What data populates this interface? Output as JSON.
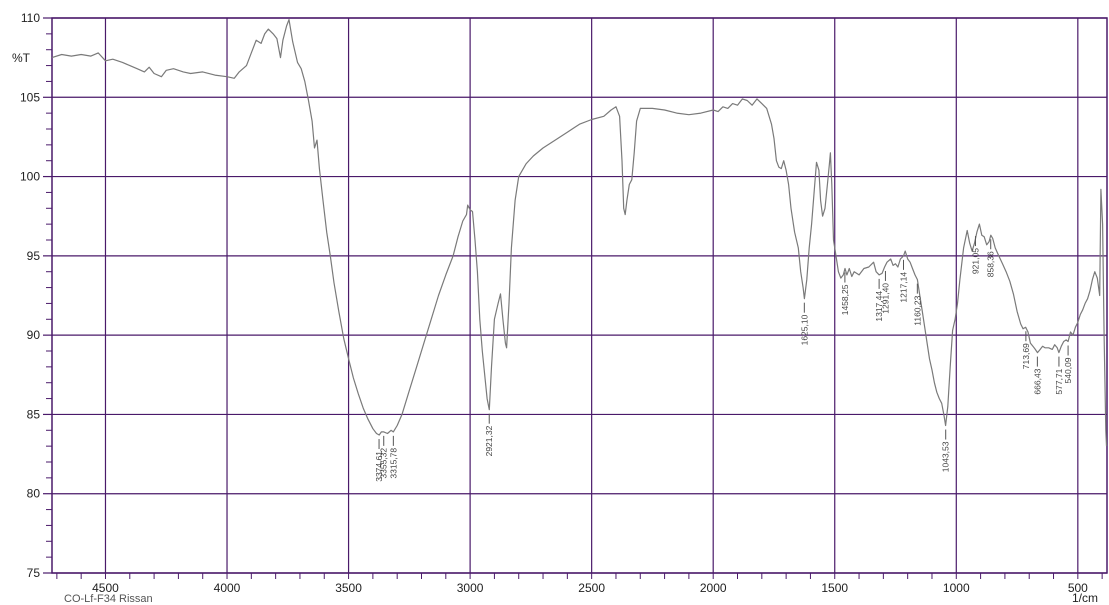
{
  "chart_data": {
    "type": "line",
    "title": "",
    "sample_label": "CO-Lf-F34 Rissan",
    "ylabel": "%T",
    "xlabel": "1/cm",
    "xlim": [
      4720,
      380
    ],
    "ylim": [
      75,
      110
    ],
    "x_ticks": [
      4500,
      4000,
      3500,
      3000,
      2500,
      2000,
      1500,
      1000,
      500
    ],
    "y_ticks": [
      75,
      80,
      85,
      90,
      95,
      100,
      105,
      110
    ],
    "grid": true,
    "colors": {
      "grid": "#4a1a6a",
      "axis": "#4a1a6a",
      "line": "#7a7a7a",
      "peak_mark": "#555555"
    },
    "series": [
      {
        "points": [
          [
            4720,
            107.5
          ],
          [
            4680,
            107.7
          ],
          [
            4640,
            107.6
          ],
          [
            4600,
            107.7
          ],
          [
            4560,
            107.6
          ],
          [
            4530,
            107.8
          ],
          [
            4500,
            107.3
          ],
          [
            4470,
            107.4
          ],
          [
            4430,
            107.2
          ],
          [
            4400,
            107.0
          ],
          [
            4370,
            106.8
          ],
          [
            4340,
            106.6
          ],
          [
            4320,
            106.9
          ],
          [
            4300,
            106.5
          ],
          [
            4270,
            106.3
          ],
          [
            4250,
            106.7
          ],
          [
            4220,
            106.8
          ],
          [
            4180,
            106.6
          ],
          [
            4150,
            106.5
          ],
          [
            4100,
            106.6
          ],
          [
            4050,
            106.4
          ],
          [
            4000,
            106.3
          ],
          [
            3970,
            106.2
          ],
          [
            3950,
            106.6
          ],
          [
            3920,
            107.0
          ],
          [
            3900,
            107.8
          ],
          [
            3880,
            108.6
          ],
          [
            3860,
            108.4
          ],
          [
            3845,
            109.0
          ],
          [
            3830,
            109.3
          ],
          [
            3810,
            109.0
          ],
          [
            3795,
            108.7
          ],
          [
            3780,
            107.5
          ],
          [
            3770,
            108.6
          ],
          [
            3755,
            109.5
          ],
          [
            3745,
            109.9
          ],
          [
            3730,
            108.5
          ],
          [
            3710,
            107.2
          ],
          [
            3695,
            106.8
          ],
          [
            3680,
            106.0
          ],
          [
            3665,
            104.8
          ],
          [
            3650,
            103.5
          ],
          [
            3640,
            101.8
          ],
          [
            3630,
            102.3
          ],
          [
            3620,
            100.5
          ],
          [
            3605,
            98.5
          ],
          [
            3590,
            96.5
          ],
          [
            3575,
            95.0
          ],
          [
            3560,
            93.3
          ],
          [
            3540,
            91.5
          ],
          [
            3520,
            89.8
          ],
          [
            3500,
            88.5
          ],
          [
            3480,
            87.3
          ],
          [
            3460,
            86.3
          ],
          [
            3440,
            85.4
          ],
          [
            3420,
            84.7
          ],
          [
            3400,
            84.1
          ],
          [
            3385,
            83.8
          ],
          [
            3374,
            83.7
          ],
          [
            3365,
            83.9
          ],
          [
            3355,
            83.9
          ],
          [
            3340,
            83.8
          ],
          [
            3325,
            84.0
          ],
          [
            3316,
            83.9
          ],
          [
            3300,
            84.3
          ],
          [
            3280,
            85.0
          ],
          [
            3250,
            86.5
          ],
          [
            3220,
            88.0
          ],
          [
            3190,
            89.5
          ],
          [
            3160,
            91.0
          ],
          [
            3130,
            92.5
          ],
          [
            3100,
            93.8
          ],
          [
            3070,
            95.0
          ],
          [
            3050,
            96.2
          ],
          [
            3030,
            97.2
          ],
          [
            3015,
            97.6
          ],
          [
            3010,
            98.2
          ],
          [
            3000,
            97.9
          ],
          [
            2990,
            97.8
          ],
          [
            2980,
            96.0
          ],
          [
            2970,
            94.0
          ],
          [
            2960,
            91.0
          ],
          [
            2950,
            89.0
          ],
          [
            2940,
            87.5
          ],
          [
            2930,
            86.0
          ],
          [
            2921,
            85.3
          ],
          [
            2912,
            88.0
          ],
          [
            2900,
            91.0
          ],
          [
            2885,
            92.0
          ],
          [
            2875,
            92.6
          ],
          [
            2865,
            91.0
          ],
          [
            2855,
            89.5
          ],
          [
            2850,
            89.2
          ],
          [
            2840,
            92.0
          ],
          [
            2830,
            95.5
          ],
          [
            2815,
            98.5
          ],
          [
            2800,
            100.0
          ],
          [
            2770,
            100.8
          ],
          [
            2740,
            101.3
          ],
          [
            2700,
            101.8
          ],
          [
            2650,
            102.3
          ],
          [
            2600,
            102.8
          ],
          [
            2550,
            103.3
          ],
          [
            2500,
            103.6
          ],
          [
            2450,
            103.8
          ],
          [
            2420,
            104.2
          ],
          [
            2400,
            104.4
          ],
          [
            2385,
            103.8
          ],
          [
            2375,
            101.0
          ],
          [
            2368,
            98.0
          ],
          [
            2362,
            97.6
          ],
          [
            2355,
            98.5
          ],
          [
            2345,
            99.5
          ],
          [
            2335,
            99.8
          ],
          [
            2325,
            101.5
          ],
          [
            2315,
            103.5
          ],
          [
            2300,
            104.3
          ],
          [
            2250,
            104.3
          ],
          [
            2200,
            104.2
          ],
          [
            2150,
            104.0
          ],
          [
            2100,
            103.9
          ],
          [
            2050,
            104.0
          ],
          [
            2000,
            104.2
          ],
          [
            1980,
            104.1
          ],
          [
            1960,
            104.4
          ],
          [
            1940,
            104.3
          ],
          [
            1920,
            104.6
          ],
          [
            1900,
            104.5
          ],
          [
            1880,
            104.9
          ],
          [
            1860,
            104.8
          ],
          [
            1840,
            104.5
          ],
          [
            1820,
            104.9
          ],
          [
            1800,
            104.6
          ],
          [
            1780,
            104.3
          ],
          [
            1760,
            103.3
          ],
          [
            1750,
            102.4
          ],
          [
            1740,
            101.0
          ],
          [
            1730,
            100.6
          ],
          [
            1720,
            100.5
          ],
          [
            1710,
            101.0
          ],
          [
            1700,
            100.4
          ],
          [
            1690,
            99.5
          ],
          [
            1680,
            98.0
          ],
          [
            1665,
            96.5
          ],
          [
            1650,
            95.5
          ],
          [
            1640,
            94.0
          ],
          [
            1630,
            93.0
          ],
          [
            1625,
            92.3
          ],
          [
            1615,
            93.5
          ],
          [
            1605,
            95.5
          ],
          [
            1595,
            97.0
          ],
          [
            1585,
            99.0
          ],
          [
            1575,
            100.9
          ],
          [
            1565,
            100.4
          ],
          [
            1558,
            98.5
          ],
          [
            1550,
            97.5
          ],
          [
            1540,
            98.0
          ],
          [
            1530,
            99.5
          ],
          [
            1522,
            100.8
          ],
          [
            1518,
            101.5
          ],
          [
            1512,
            99.5
          ],
          [
            1505,
            96.0
          ],
          [
            1495,
            95.0
          ],
          [
            1485,
            94.0
          ],
          [
            1475,
            93.6
          ],
          [
            1465,
            93.8
          ],
          [
            1458,
            94.2
          ],
          [
            1450,
            93.8
          ],
          [
            1440,
            94.2
          ],
          [
            1430,
            93.7
          ],
          [
            1420,
            94.0
          ],
          [
            1400,
            93.8
          ],
          [
            1380,
            94.2
          ],
          [
            1360,
            94.3
          ],
          [
            1340,
            94.6
          ],
          [
            1330,
            94.0
          ],
          [
            1317,
            93.8
          ],
          [
            1305,
            93.9
          ],
          [
            1295,
            94.3
          ],
          [
            1285,
            94.6
          ],
          [
            1270,
            94.8
          ],
          [
            1260,
            94.4
          ],
          [
            1250,
            94.5
          ],
          [
            1240,
            94.3
          ],
          [
            1230,
            94.8
          ],
          [
            1217,
            95.0
          ],
          [
            1210,
            95.3
          ],
          [
            1200,
            94.8
          ],
          [
            1190,
            94.6
          ],
          [
            1180,
            94.2
          ],
          [
            1170,
            93.8
          ],
          [
            1160,
            93.5
          ],
          [
            1150,
            92.5
          ],
          [
            1140,
            91.5
          ],
          [
            1130,
            90.5
          ],
          [
            1120,
            89.5
          ],
          [
            1110,
            88.5
          ],
          [
            1100,
            87.8
          ],
          [
            1090,
            87.0
          ],
          [
            1080,
            86.4
          ],
          [
            1070,
            86.0
          ],
          [
            1060,
            85.7
          ],
          [
            1050,
            84.9
          ],
          [
            1044,
            84.3
          ],
          [
            1035,
            85.5
          ],
          [
            1025,
            88.0
          ],
          [
            1015,
            90.3
          ],
          [
            1005,
            91.0
          ],
          [
            995,
            92.0
          ],
          [
            985,
            93.5
          ],
          [
            970,
            95.5
          ],
          [
            955,
            96.6
          ],
          [
            945,
            95.8
          ],
          [
            935,
            95.3
          ],
          [
            925,
            95.8
          ],
          [
            915,
            96.5
          ],
          [
            905,
            97.0
          ],
          [
            895,
            96.3
          ],
          [
            885,
            96.2
          ],
          [
            875,
            95.7
          ],
          [
            865,
            95.9
          ],
          [
            858,
            96.3
          ],
          [
            850,
            96.1
          ],
          [
            840,
            95.5
          ],
          [
            825,
            95.0
          ],
          [
            810,
            94.5
          ],
          [
            795,
            94.0
          ],
          [
            780,
            93.4
          ],
          [
            765,
            92.6
          ],
          [
            750,
            91.5
          ],
          [
            735,
            90.7
          ],
          [
            725,
            90.4
          ],
          [
            715,
            90.5
          ],
          [
            705,
            90.2
          ],
          [
            695,
            89.5
          ],
          [
            685,
            89.3
          ],
          [
            675,
            89.1
          ],
          [
            666,
            88.9
          ],
          [
            655,
            89.1
          ],
          [
            645,
            89.3
          ],
          [
            635,
            89.2
          ],
          [
            620,
            89.2
          ],
          [
            605,
            89.1
          ],
          [
            595,
            89.4
          ],
          [
            585,
            89.2
          ],
          [
            578,
            88.9
          ],
          [
            568,
            89.3
          ],
          [
            558,
            89.6
          ],
          [
            548,
            89.7
          ],
          [
            540,
            89.6
          ],
          [
            530,
            90.2
          ],
          [
            520,
            90.0
          ],
          [
            510,
            90.5
          ],
          [
            500,
            90.8
          ],
          [
            490,
            91.3
          ],
          [
            480,
            91.6
          ],
          [
            470,
            92.0
          ],
          [
            460,
            92.3
          ],
          [
            450,
            92.8
          ],
          [
            440,
            93.5
          ],
          [
            430,
            94.0
          ],
          [
            420,
            93.6
          ],
          [
            410,
            92.5
          ],
          [
            405,
            99.2
          ],
          [
            398,
            97.0
          ],
          [
            392,
            90.0
          ],
          [
            385,
            84.0
          ],
          [
            382,
            83.0
          ]
        ]
      }
    ],
    "peaks": [
      {
        "x": 3374.61,
        "label": "3374,61",
        "y": 83.7
      },
      {
        "x": 3355.32,
        "label": "3355,32",
        "y": 83.9
      },
      {
        "x": 3315.78,
        "label": "3315,78",
        "y": 83.9
      },
      {
        "x": 2921.32,
        "label": "2921,32",
        "y": 85.3
      },
      {
        "x": 1625.1,
        "label": "1625,10",
        "y": 92.3
      },
      {
        "x": 1458.25,
        "label": "1458,25",
        "y": 94.2
      },
      {
        "x": 1317.44,
        "label": "1317,44",
        "y": 93.8
      },
      {
        "x": 1291.4,
        "label": "1291,40",
        "y": 94.3
      },
      {
        "x": 1217.14,
        "label": "1217,14",
        "y": 95.0
      },
      {
        "x": 1160.23,
        "label": "1160,23",
        "y": 93.5
      },
      {
        "x": 1043.53,
        "label": "1043,53",
        "y": 84.3
      },
      {
        "x": 921.05,
        "label": "921,05",
        "y": 96.5
      },
      {
        "x": 858.36,
        "label": "858,36",
        "y": 96.3
      },
      {
        "x": 713.69,
        "label": "713,69",
        "y": 90.5
      },
      {
        "x": 666.43,
        "label": "666,43",
        "y": 88.9
      },
      {
        "x": 577.71,
        "label": "577,71",
        "y": 88.9
      },
      {
        "x": 540.09,
        "label": "540,09",
        "y": 89.6
      }
    ]
  }
}
